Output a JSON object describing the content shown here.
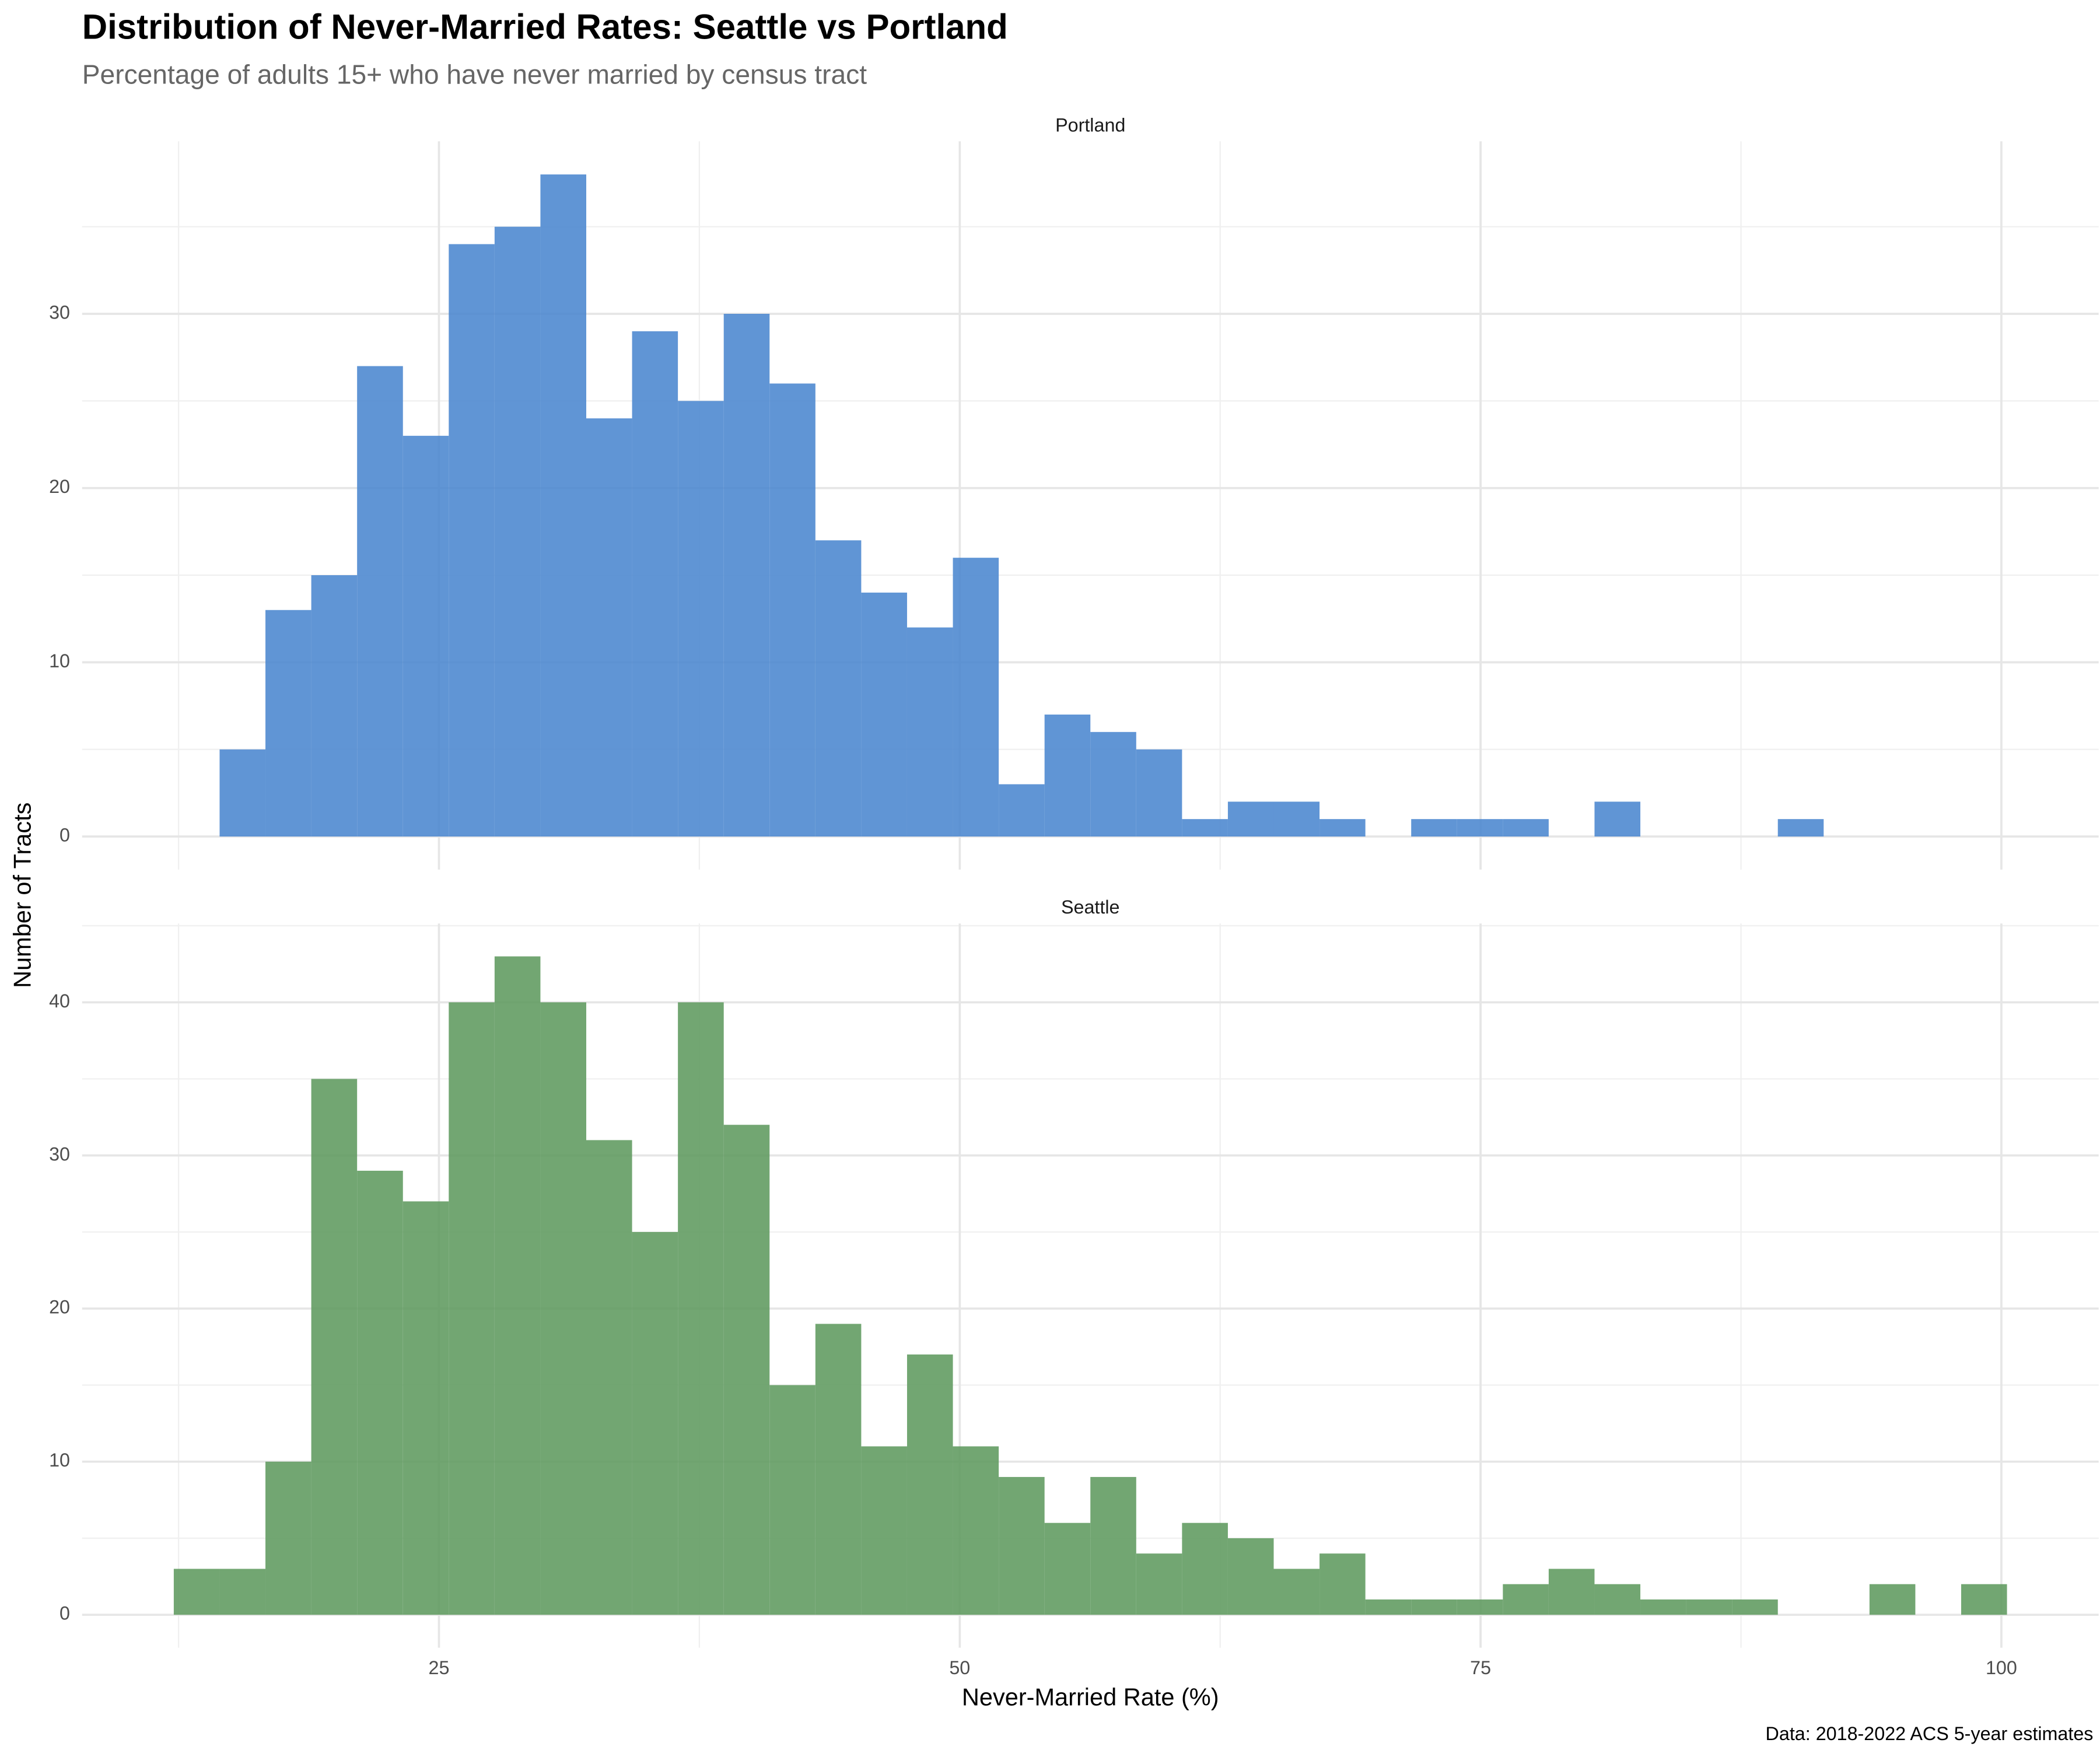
{
  "title": "Distribution of Never-Married Rates: Seattle vs Portland",
  "subtitle": "Percentage of adults 15+ who have never married by census tract",
  "caption": "Data: 2018-2022 ACS 5-year estimates",
  "x_label": "Never-Married Rate (%)",
  "y_label": "Number of Tracts",
  "bins": [
    12.27,
    14.47,
    16.67,
    18.87,
    21.07,
    23.27,
    25.47,
    27.67,
    29.87,
    32.07,
    34.27,
    36.47,
    38.67,
    40.87,
    43.07,
    45.27,
    47.47,
    49.67,
    51.87,
    54.07,
    56.27,
    58.47,
    60.67,
    62.87,
    65.07,
    67.27,
    69.47,
    71.67,
    73.87,
    76.07,
    78.27,
    80.47,
    82.67,
    84.87,
    87.07,
    89.27,
    91.47,
    93.67,
    95.87,
    98.07,
    100.27
  ],
  "xlim": [
    7.87,
    104.67
  ],
  "xticks": [
    25,
    50,
    75,
    100
  ],
  "xminor": [
    12.5,
    37.5,
    62.5,
    87.5
  ],
  "grid": true,
  "chart_data": [
    {
      "type": "histogram",
      "name": "Portland",
      "color": "#4a86cf",
      "values": [
        0,
        5,
        13,
        15,
        27,
        23,
        34,
        35,
        38,
        24,
        29,
        25,
        30,
        26,
        17,
        14,
        12,
        16,
        3,
        7,
        6,
        5,
        1,
        2,
        2,
        1,
        0,
        1,
        1,
        1,
        0,
        2,
        0,
        0,
        0,
        1,
        0,
        0,
        0,
        0
      ],
      "ylim": [
        -1.9,
        39.9
      ],
      "yticks": [
        0,
        10,
        20,
        30
      ],
      "yminor": [
        5,
        15,
        25,
        35
      ]
    },
    {
      "type": "histogram",
      "name": "Seattle",
      "color": "#5f9a5f",
      "values": [
        3,
        3,
        10,
        35,
        29,
        27,
        40,
        43,
        40,
        31,
        25,
        40,
        32,
        15,
        19,
        11,
        17,
        11,
        9,
        6,
        9,
        4,
        6,
        5,
        3,
        4,
        1,
        1,
        1,
        2,
        3,
        2,
        1,
        1,
        1,
        0,
        0,
        2,
        0,
        2
      ],
      "ylim": [
        -2.15,
        45.15
      ],
      "yticks": [
        0,
        10,
        20,
        30,
        40
      ],
      "yminor": [
        5,
        15,
        25,
        35,
        45
      ]
    }
  ]
}
